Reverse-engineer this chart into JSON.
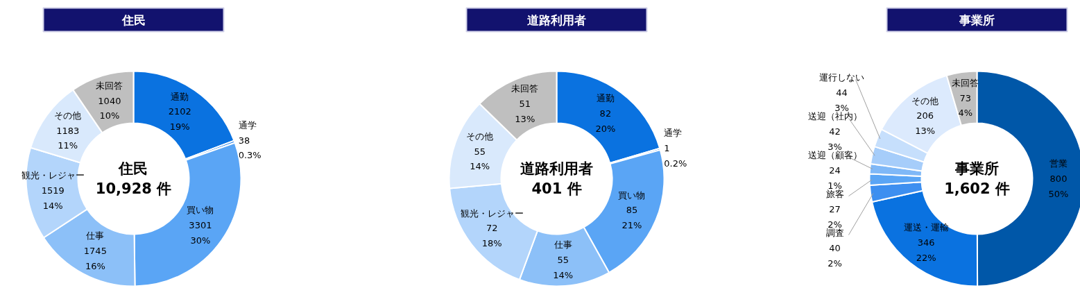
{
  "chart_data": [
    {
      "type": "donut",
      "title": "住民",
      "annotations": [
        "住民\n10,928 件"
      ],
      "categories": [
        "通勤",
        "通学",
        "買い物",
        "仕事",
        "観光・レジャー",
        "その他",
        "未回答"
      ],
      "values": [
        2102,
        38,
        3301,
        1745,
        1519,
        1183,
        1040
      ],
      "value_labels": [
        "2102\n19%",
        "38\n0.3%",
        "3301\n30%",
        "1745\n16%",
        "1519\n14%",
        "1183\n11%",
        "1040\n10%"
      ],
      "colors": [
        "#0a72e0",
        "#2f86ea",
        "#5aa5f5",
        "#8cc0f8",
        "#b3d5fb",
        "#d9e9fc",
        "#bfbfbf"
      ],
      "legend": false
    },
    {
      "type": "donut",
      "title": "道路利用者",
      "annotations": [
        "道路利用者\n401 件"
      ],
      "categories": [
        "通勤",
        "通学",
        "買い物",
        "仕事",
        "観光・レジャー",
        "その他",
        "未回答"
      ],
      "values": [
        82,
        1,
        85,
        55,
        72,
        55,
        51
      ],
      "value_labels": [
        "82\n20%",
        "1\n0.2%",
        "85\n21%",
        "55\n14%",
        "72\n18%",
        "55\n14%",
        "51\n13%"
      ],
      "colors": [
        "#0a72e0",
        "#2f86ea",
        "#5aa5f5",
        "#8cc0f8",
        "#b3d5fb",
        "#d9e9fc",
        "#bfbfbf"
      ],
      "legend": false
    },
    {
      "type": "donut",
      "title": "事業所",
      "annotations": [
        "事業所\n1,602 件"
      ],
      "categories": [
        "営業",
        "運送・運輸",
        "調査",
        "旅客",
        "送迎（顧客）",
        "送迎（社内）",
        "運行しない",
        "その他",
        "未回答"
      ],
      "values": [
        800,
        346,
        40,
        27,
        24,
        42,
        44,
        206,
        73
      ],
      "value_labels": [
        "800\n50%",
        "346\n22%",
        "40\n2%",
        "27\n2%",
        "24\n1%",
        "42\n3%",
        "44\n3%",
        "206\n13%",
        "73\n4%"
      ],
      "colors": [
        "#0057a8",
        "#0a72e0",
        "#3d8ff0",
        "#5aa5f5",
        "#7fb8f7",
        "#a6cdfa",
        "#c6dffc",
        "#dceafd",
        "#bfbfbf"
      ],
      "legend": false
    }
  ]
}
